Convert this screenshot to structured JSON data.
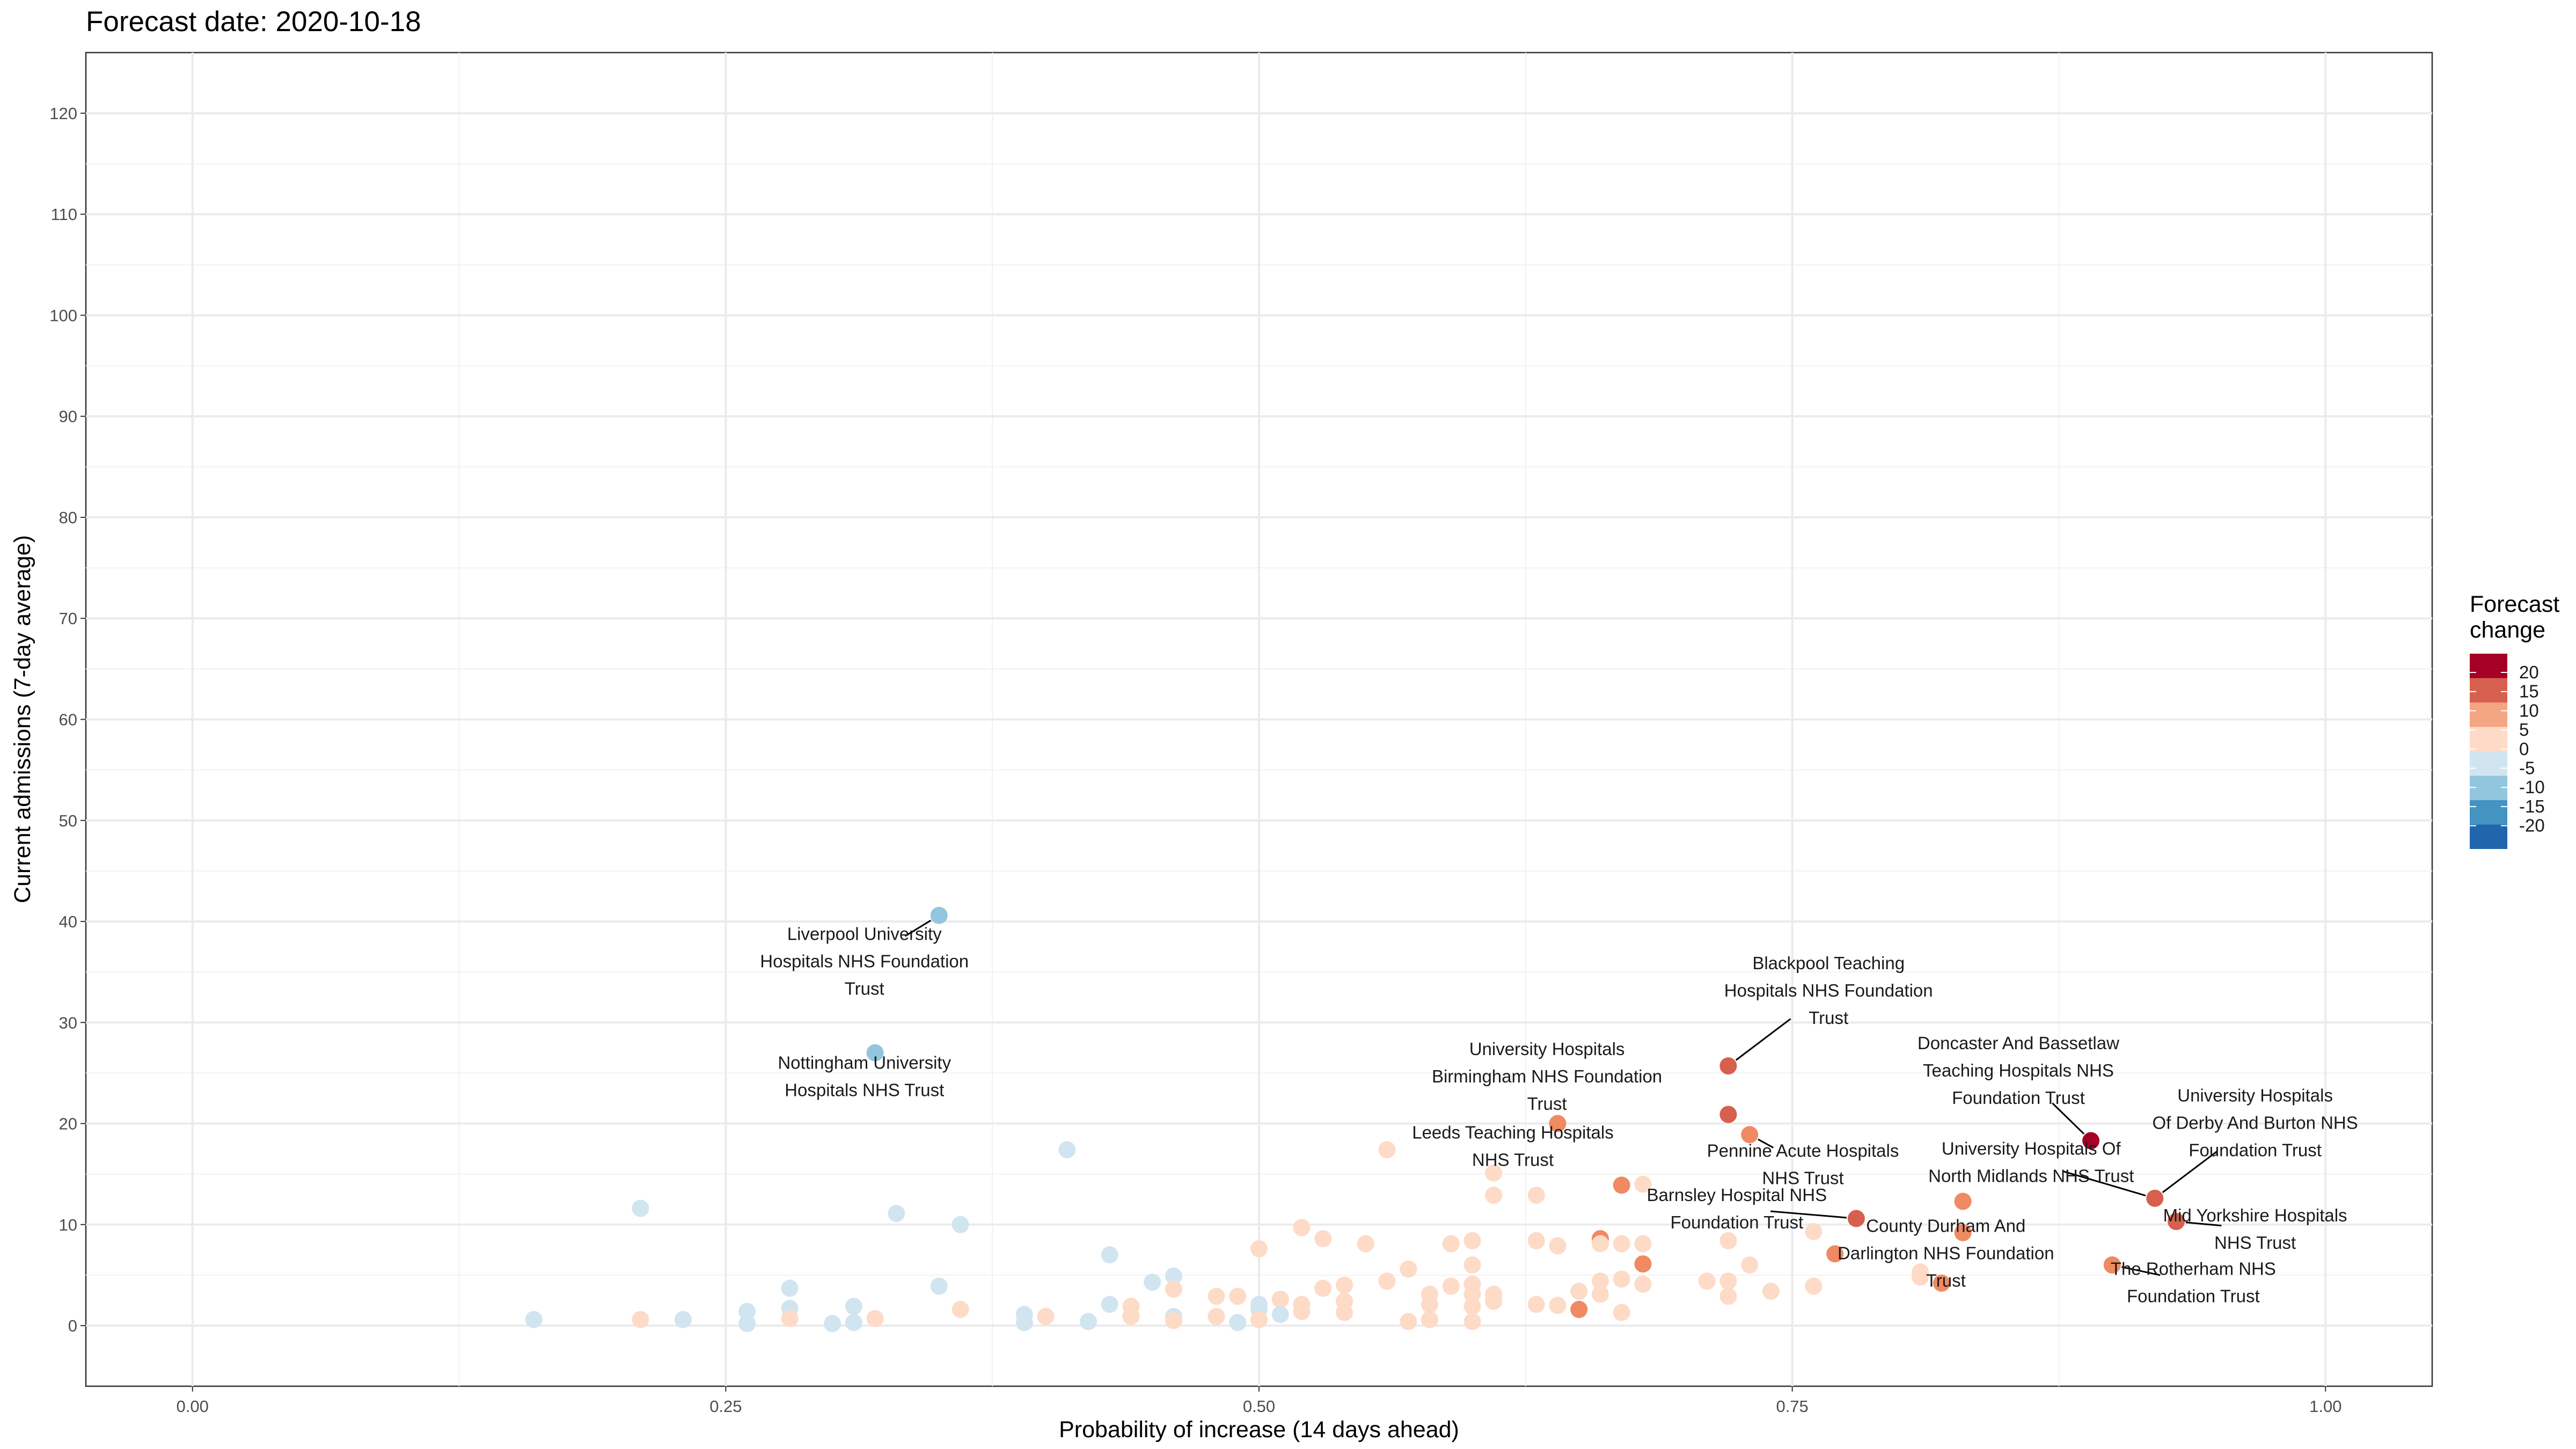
{
  "chart_data": {
    "type": "scatter",
    "title": "Forecast date: 2020-10-18",
    "xlabel": "Probability of increase (14 days ahead)",
    "ylabel": "Current admissions (7-day average)",
    "xlim": [
      -0.05,
      1.05
    ],
    "ylim": [
      -6,
      126
    ],
    "x_ticks": [
      "0.00",
      "0.25",
      "0.50",
      "0.75",
      "1.00"
    ],
    "y_ticks": [
      "0",
      "10",
      "20",
      "30",
      "40",
      "50",
      "60",
      "70",
      "80",
      "90",
      "100",
      "110",
      "120"
    ],
    "grid": true,
    "legend": {
      "title": "Forecast\nchange",
      "position": "right",
      "labels": [
        "20",
        "15",
        "10",
        "5",
        "0",
        "-5",
        "-10",
        "-15",
        "-20"
      ],
      "colors": [
        "#a50026",
        "#d6604d",
        "#f4a582",
        "#fddbc7",
        "#d1e5f0",
        "#92c5de",
        "#4393c3",
        "#2166ac"
      ]
    },
    "points": [
      [
        0.16,
        0.6,
        -1
      ],
      [
        0.21,
        11.6,
        -1
      ],
      [
        0.21,
        0.6,
        1
      ],
      [
        0.23,
        0.6,
        -1
      ],
      [
        0.26,
        1.4,
        -1
      ],
      [
        0.26,
        0.2,
        -1
      ],
      [
        0.28,
        3.7,
        -1
      ],
      [
        0.28,
        1.7,
        -1
      ],
      [
        0.28,
        0.7,
        1
      ],
      [
        0.3,
        0.2,
        -1
      ],
      [
        0.31,
        1.9,
        -1
      ],
      [
        0.31,
        0.3,
        -1
      ],
      [
        0.32,
        0.7,
        1
      ],
      [
        0.33,
        11.1,
        -1
      ],
      [
        0.35,
        3.9,
        -1
      ],
      [
        0.36,
        10.0,
        -1
      ],
      [
        0.36,
        1.6,
        1
      ],
      [
        0.39,
        1.1,
        -1
      ],
      [
        0.39,
        0.3,
        -1
      ],
      [
        0.4,
        0.9,
        1
      ],
      [
        0.41,
        17.4,
        -1
      ],
      [
        0.42,
        0.4,
        -1
      ],
      [
        0.43,
        7.0,
        -1
      ],
      [
        0.43,
        2.1,
        -1
      ],
      [
        0.44,
        1.9,
        1
      ],
      [
        0.44,
        0.9,
        1
      ],
      [
        0.45,
        4.3,
        -1
      ],
      [
        0.46,
        4.9,
        -1
      ],
      [
        0.46,
        3.6,
        1
      ],
      [
        0.46,
        0.9,
        -1
      ],
      [
        0.46,
        0.5,
        1
      ],
      [
        0.48,
        2.9,
        1
      ],
      [
        0.48,
        0.9,
        1
      ],
      [
        0.49,
        2.9,
        1
      ],
      [
        0.49,
        0.3,
        -1
      ],
      [
        0.5,
        7.6,
        1
      ],
      [
        0.5,
        2.1,
        -1
      ],
      [
        0.5,
        1.6,
        -1
      ],
      [
        0.5,
        0.6,
        1
      ],
      [
        0.51,
        2.6,
        1
      ],
      [
        0.51,
        1.1,
        -1
      ],
      [
        0.52,
        9.7,
        2
      ],
      [
        0.52,
        2.1,
        1
      ],
      [
        0.52,
        1.4,
        1
      ],
      [
        0.53,
        8.6,
        2
      ],
      [
        0.53,
        3.7,
        2
      ],
      [
        0.54,
        4.0,
        1
      ],
      [
        0.54,
        2.4,
        1
      ],
      [
        0.54,
        1.3,
        1
      ],
      [
        0.55,
        8.1,
        1
      ],
      [
        0.56,
        17.4,
        2
      ],
      [
        0.56,
        4.4,
        1
      ],
      [
        0.57,
        5.6,
        1
      ],
      [
        0.57,
        0.4,
        1
      ],
      [
        0.58,
        3.1,
        1
      ],
      [
        0.58,
        2.1,
        1
      ],
      [
        0.58,
        0.6,
        1
      ],
      [
        0.59,
        8.1,
        1
      ],
      [
        0.59,
        3.9,
        1
      ],
      [
        0.6,
        8.4,
        1
      ],
      [
        0.6,
        6.0,
        1
      ],
      [
        0.6,
        4.1,
        1
      ],
      [
        0.6,
        3.1,
        1
      ],
      [
        0.6,
        1.9,
        1
      ],
      [
        0.6,
        0.4,
        1
      ],
      [
        0.61,
        15.1,
        1
      ],
      [
        0.61,
        12.9,
        1
      ],
      [
        0.61,
        3.1,
        1
      ],
      [
        0.61,
        2.4,
        1
      ],
      [
        0.63,
        12.9,
        1
      ],
      [
        0.63,
        8.4,
        1
      ],
      [
        0.63,
        2.1,
        1
      ],
      [
        0.64,
        20.0,
        6
      ],
      [
        0.64,
        7.9,
        1
      ],
      [
        0.64,
        2.0,
        1
      ],
      [
        0.65,
        3.4,
        1
      ],
      [
        0.65,
        1.6,
        7
      ],
      [
        0.66,
        8.6,
        7
      ],
      [
        0.66,
        8.1,
        1
      ],
      [
        0.66,
        4.4,
        1
      ],
      [
        0.66,
        3.1,
        1
      ],
      [
        0.67,
        13.9,
        7
      ],
      [
        0.67,
        8.1,
        1
      ],
      [
        0.67,
        4.6,
        1
      ],
      [
        0.67,
        1.3,
        1
      ],
      [
        0.68,
        14.0,
        2
      ],
      [
        0.68,
        8.1,
        1
      ],
      [
        0.68,
        6.1,
        7
      ],
      [
        0.68,
        4.1,
        1
      ],
      [
        0.71,
        4.4,
        1
      ],
      [
        0.72,
        25.7,
        11
      ],
      [
        0.72,
        20.9,
        11
      ],
      [
        0.72,
        8.4,
        1
      ],
      [
        0.72,
        4.4,
        1
      ],
      [
        0.72,
        2.9,
        1
      ],
      [
        0.73,
        18.9,
        7
      ],
      [
        0.73,
        6.0,
        1
      ],
      [
        0.74,
        3.4,
        1
      ],
      [
        0.76,
        9.3,
        1
      ],
      [
        0.76,
        3.9,
        1
      ],
      [
        0.77,
        7.1,
        7
      ],
      [
        0.78,
        10.6,
        11
      ],
      [
        0.81,
        5.3,
        2
      ],
      [
        0.81,
        4.8,
        1
      ],
      [
        0.82,
        4.2,
        6
      ],
      [
        0.83,
        12.3,
        7
      ],
      [
        0.83,
        9.2,
        7
      ],
      [
        0.89,
        18.3,
        17
      ],
      [
        0.9,
        6.0,
        7
      ],
      [
        0.92,
        12.6,
        11
      ],
      [
        0.93,
        10.3,
        11
      ],
      [
        0.32,
        27.0,
        -7
      ],
      [
        0.35,
        40.6,
        -7
      ]
    ],
    "annotations": [
      {
        "lines": [
          "Liverpool University",
          "Hospitals NHS Foundation",
          "Trust"
        ]
      },
      {
        "lines": [
          "Nottingham University",
          "Hospitals NHS Trust"
        ]
      },
      {
        "lines": [
          "Blackpool Teaching",
          "Hospitals NHS Foundation",
          "Trust"
        ]
      },
      {
        "lines": [
          "University Hospitals",
          "Birmingham NHS Foundation",
          "Trust"
        ]
      },
      {
        "lines": [
          "Leeds Teaching Hospitals",
          "NHS Trust"
        ]
      },
      {
        "lines": [
          "Pennine Acute Hospitals",
          "NHS Trust"
        ]
      },
      {
        "lines": [
          "Barnsley Hospital NHS",
          "Foundation Trust"
        ]
      },
      {
        "lines": [
          "Doncaster And Bassetlaw",
          "Teaching Hospitals NHS",
          "Foundation Trust"
        ]
      },
      {
        "lines": [
          "University Hospitals Of",
          "North Midlands NHS Trust"
        ]
      },
      {
        "lines": [
          "University Hospitals",
          "Of Derby And Burton NHS",
          "Foundation Trust"
        ]
      },
      {
        "lines": [
          "County Durham And",
          "Darlington NHS Foundation",
          "Trust"
        ]
      },
      {
        "lines": [
          "Mid Yorkshire Hospitals",
          "NHS Trust"
        ]
      },
      {
        "lines": [
          "The Rotherham NHS",
          "Foundation Trust"
        ]
      }
    ]
  }
}
